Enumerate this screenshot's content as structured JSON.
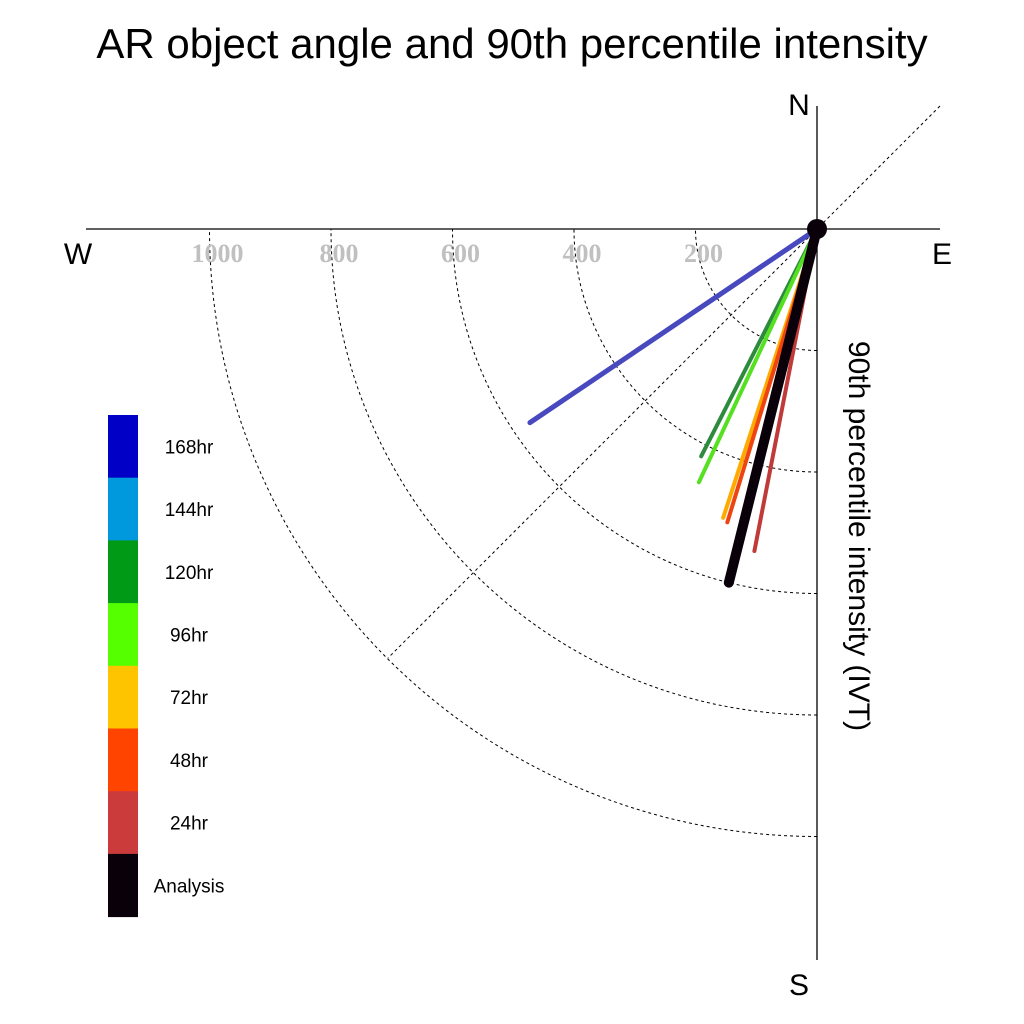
{
  "chart_data": {
    "type": "polar-line",
    "title": "AR object angle and 90th percentile intensity",
    "ylabel": "90th percentile intensity (IVT)",
    "compass": {
      "north": "N",
      "south": "S",
      "east": "E",
      "west": "W"
    },
    "radial_ticks": [
      200,
      400,
      600,
      800,
      1000
    ],
    "radial_tick_labels": [
      "200",
      "400",
      "600",
      "800",
      "1000"
    ],
    "rlim": [
      0,
      1000
    ],
    "angle_unit": "degrees clockwise from north",
    "grid": true,
    "legend_position": "left",
    "series": [
      {
        "name": "168hr",
        "color": "#0000c6",
        "line_color": "#4848bf",
        "angle": 236,
        "value": 570
      },
      {
        "name": "144hr",
        "color": "#0099dd",
        "line_color": "#0099dd",
        "angle": null,
        "value": null
      },
      {
        "name": "120hr",
        "color": "#009a17",
        "line_color": "#2e8b3e",
        "angle": 207,
        "value": 420
      },
      {
        "name": "96hr",
        "color": "#55ff00",
        "line_color": "#55e022",
        "angle": 205,
        "value": 460
      },
      {
        "name": "72hr",
        "color": "#ffc400",
        "line_color": "#ffaa00",
        "angle": 198,
        "value": 500
      },
      {
        "name": "48hr",
        "color": "#ff4400",
        "line_color": "#ee4411",
        "angle": 197,
        "value": 505
      },
      {
        "name": "24hr",
        "color": "#cc3b3b",
        "line_color": "#c03a3a",
        "angle": 191,
        "value": 540
      },
      {
        "name": "Analysis",
        "color": "#0a0009",
        "line_color": "#0a0009",
        "angle": 194,
        "value": 600
      }
    ]
  }
}
